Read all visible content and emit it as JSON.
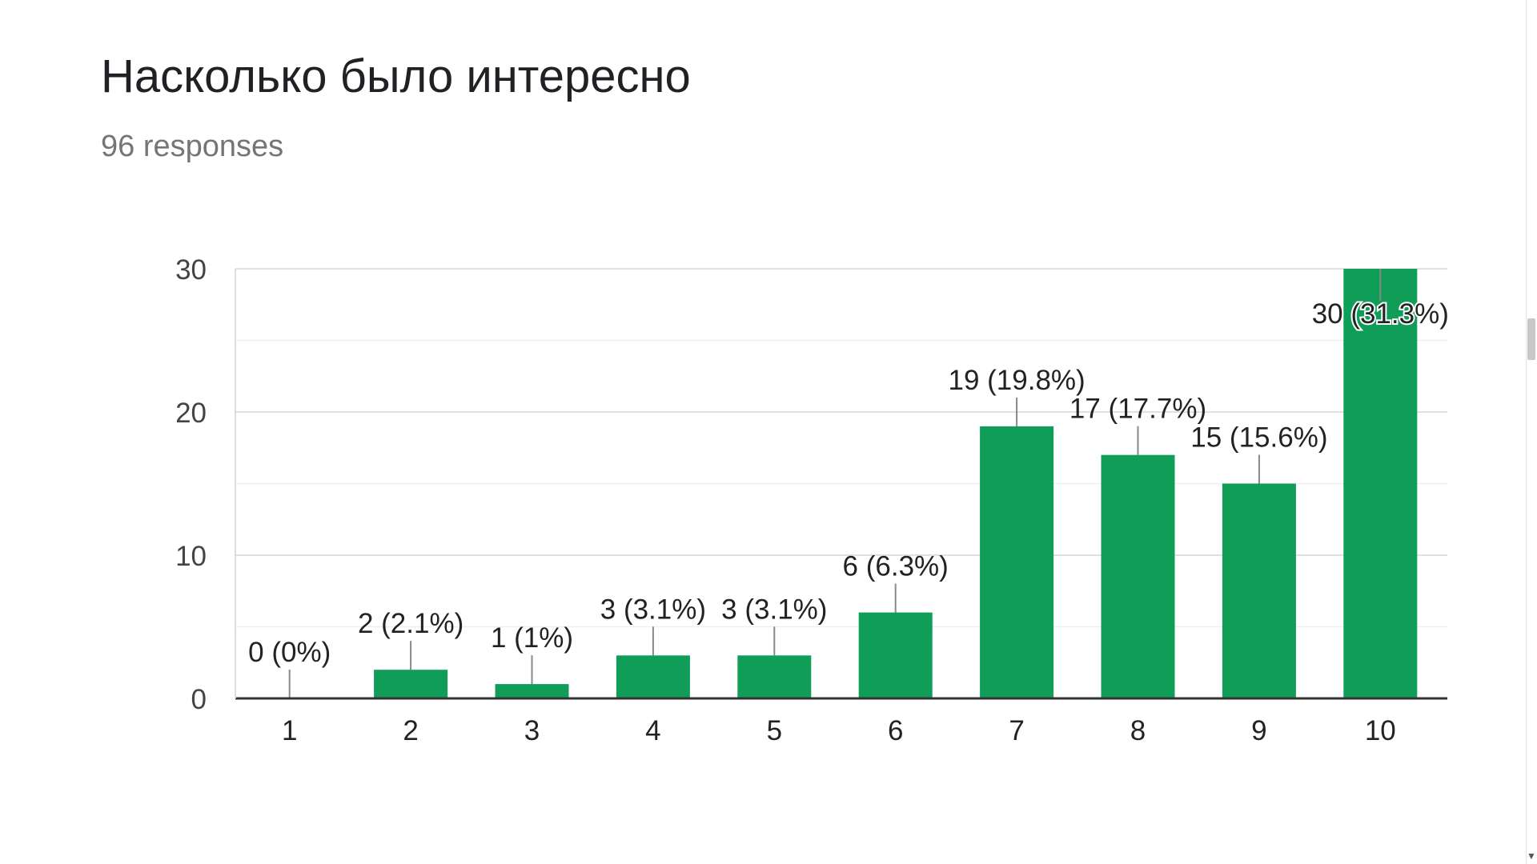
{
  "header": {
    "title": "Насколько было интересно",
    "subtitle": "96 responses"
  },
  "chart_data": {
    "type": "bar",
    "categories": [
      "1",
      "2",
      "3",
      "4",
      "5",
      "6",
      "7",
      "8",
      "9",
      "10"
    ],
    "values": [
      0,
      2,
      1,
      3,
      3,
      6,
      19,
      17,
      15,
      30
    ],
    "data_labels": [
      "0 (0%)",
      "2 (2.1%)",
      "1 (1%)",
      "3 (3.1%)",
      "3 (3.1%)",
      "6 (6.3%)",
      "19 (19.8%)",
      "17 (17.7%)",
      "15 (15.6%)",
      "30 (31.3%)"
    ],
    "yticks": [
      0,
      10,
      20,
      30
    ],
    "ylim": [
      0,
      30
    ],
    "grid": true,
    "bar_color": "#0f9d58",
    "title": "",
    "xlabel": "",
    "ylabel": ""
  },
  "scrollbar": {
    "down_arrow_icon": "chevron-down-icon"
  }
}
